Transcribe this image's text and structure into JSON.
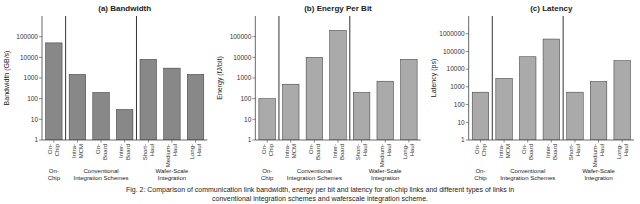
{
  "chart_data": [
    {
      "type": "bar",
      "title": "(a) Bandwidth",
      "y_label": "Bandwidth (GB/s)",
      "categories": [
        "On-\nChip",
        "Intra-\nMCM",
        "On-\nBoard",
        "Inter-\nBoard",
        "Short-\nHaul",
        "Medium-\nHaul",
        "Long-\nHaul"
      ],
      "values": [
        50000,
        1500,
        200,
        30,
        8000,
        3000,
        1500
      ],
      "color": "#888888",
      "log": "y",
      "grid": false,
      "ylim": [
        1,
        1000000
      ],
      "yticks": [
        1,
        10,
        100,
        1000,
        10000,
        100000
      ],
      "groups": [
        {
          "label": "On-\nChip",
          "span": [
            0,
            0
          ]
        },
        {
          "label": "Conventional\nIntegration Schemes",
          "span": [
            1,
            3
          ]
        },
        {
          "label": "Wafer-Scale\nIntegration",
          "span": [
            4,
            6
          ]
        }
      ]
    },
    {
      "type": "bar",
      "title": "(b) Energy Per Bit",
      "y_label": "Energy (fJ/bit)",
      "categories": [
        "On-\nChip",
        "Intra-\nMCM",
        "On-\nBoard",
        "Inter-\nBoard",
        "Short-\nHaul",
        "Medium-\nHaul",
        "Long-\nHaul"
      ],
      "values": [
        100,
        500,
        10000,
        200000,
        200,
        700,
        8000
      ],
      "color": "#aaaaaa",
      "log": "y",
      "grid": false,
      "ylim": [
        1,
        1000000
      ],
      "yticks": [
        1,
        10,
        100,
        1000,
        10000,
        100000
      ],
      "groups": [
        {
          "label": "On-\nChip",
          "span": [
            0,
            0
          ]
        },
        {
          "label": "Conventional\nIntegration Schemes",
          "span": [
            1,
            3
          ]
        },
        {
          "label": "Wafer-Scale\nIntegration",
          "span": [
            4,
            6
          ]
        }
      ]
    },
    {
      "type": "bar",
      "title": "(c) Latency",
      "y_label": "Latency (ps)",
      "categories": [
        "On-\nChip",
        "Intra-\nMCM",
        "On-\nBoard",
        "Inter-\nBoard",
        "Short-\nHaul",
        "Medium-\nHaul",
        "Long-\nHaul"
      ],
      "values": [
        500,
        3000,
        50000,
        500000,
        500,
        2000,
        30000
      ],
      "color": "#aaaaaa",
      "log": "y",
      "grid": false,
      "ylim": [
        1,
        10000000
      ],
      "yticks": [
        1,
        10,
        100,
        1000,
        10000,
        100000,
        1000000
      ],
      "groups": [
        {
          "label": "On-\nChip",
          "span": [
            0,
            0
          ]
        },
        {
          "label": "Conventional\nIntegration Schemes",
          "span": [
            1,
            3
          ]
        },
        {
          "label": "Wafer-Scale\nIntegration",
          "span": [
            4,
            6
          ]
        }
      ]
    }
  ],
  "caption": [
    "Fig. 2: Comparison of communication link bandwidth, energy per bit and latency for on-chip links and different types of links in",
    "conventional integration schemes and waferscale integration scheme."
  ]
}
